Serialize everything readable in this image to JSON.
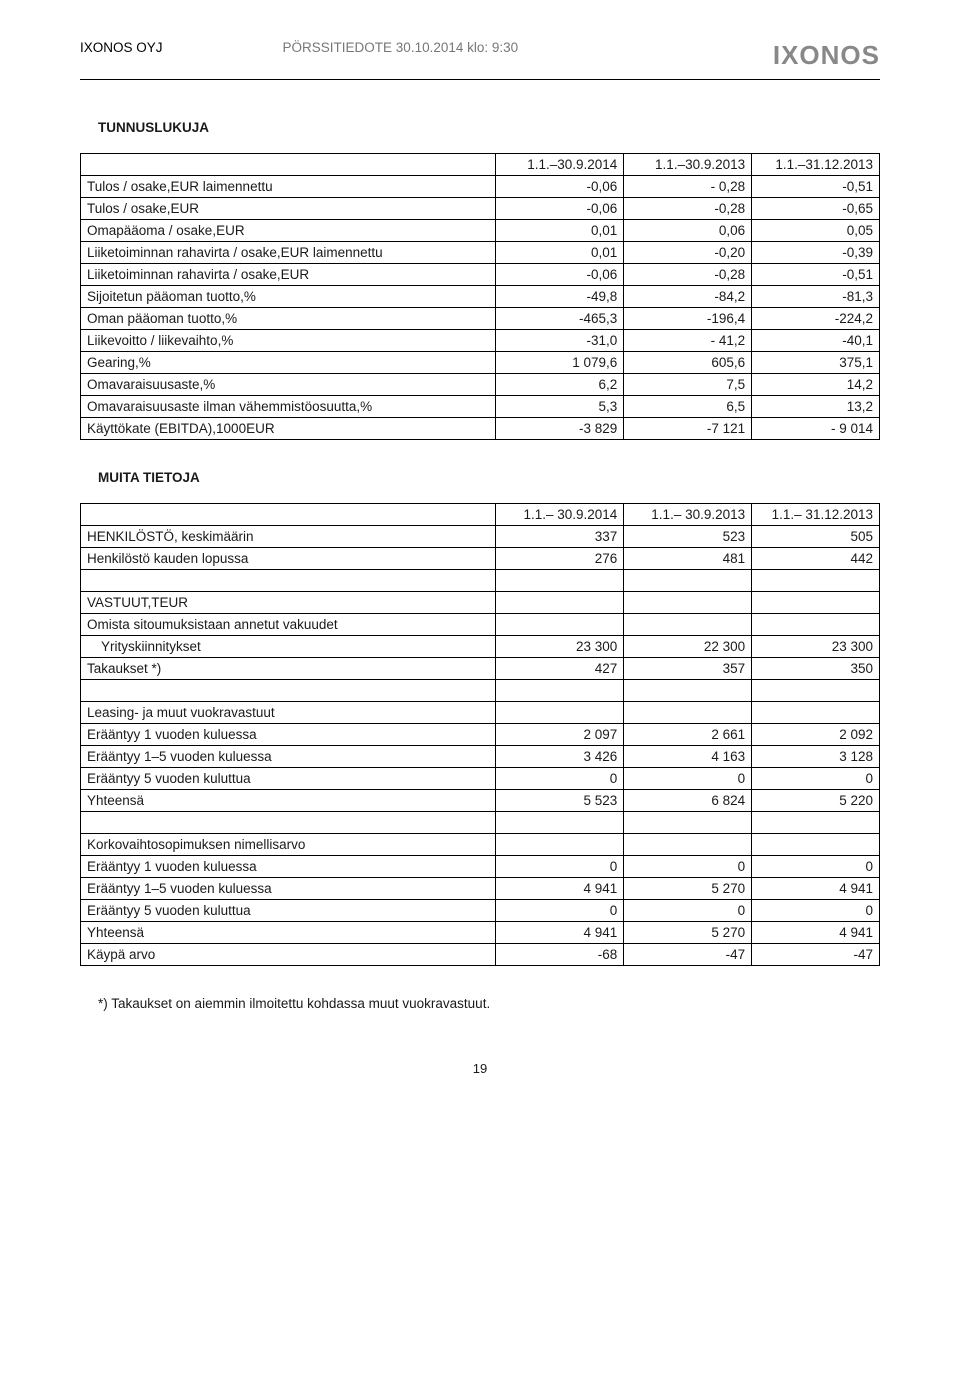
{
  "header": {
    "company": "IXONOS OYJ",
    "release": "PÖRSSITIEDOTE 30.10.2014 klo: 9:30",
    "logo": "IXONOS"
  },
  "section1": {
    "title": "TUNNUSLUKUJA",
    "columns": [
      "",
      "1.1.–30.9.2014",
      "1.1.–30.9.2013",
      "1.1.–31.12.2013"
    ],
    "rows": [
      [
        "Tulos / osake,EUR laimennettu",
        "-0,06",
        "- 0,28",
        "-0,51"
      ],
      [
        "Tulos / osake,EUR",
        "-0,06",
        "-0,28",
        "-0,65"
      ],
      [
        "Omapääoma / osake,EUR",
        "0,01",
        "0,06",
        "0,05"
      ],
      [
        "Liiketoiminnan rahavirta / osake,EUR laimennettu",
        "0,01",
        "-0,20",
        "-0,39"
      ],
      [
        "Liiketoiminnan rahavirta / osake,EUR",
        "-0,06",
        "-0,28",
        "-0,51"
      ],
      [
        "Sijoitetun pääoman tuotto,%",
        "-49,8",
        "-84,2",
        "-81,3"
      ],
      [
        "Oman pääoman tuotto,%",
        "-465,3",
        "-196,4",
        "-224,2"
      ],
      [
        "Liikevoitto /  liikevaihto,%",
        "-31,0",
        "- 41,2",
        "-40,1"
      ],
      [
        "Gearing,%",
        "1 079,6",
        "605,6",
        "375,1"
      ],
      [
        "Omavaraisuusaste,%",
        "6,2",
        "7,5",
        "14,2"
      ],
      [
        "Omavaraisuusaste ilman vähemmistöosuutta,%",
        "5,3",
        "6,5",
        "13,2"
      ],
      [
        "Käyttökate (EBITDA),1000EUR",
        "-3 829",
        "-7 121",
        "- 9 014"
      ]
    ]
  },
  "section2": {
    "title": "MUITA TIETOJA",
    "columns": [
      "",
      "1.1.– 30.9.2014",
      "1.1.– 30.9.2013",
      "1.1.– 31.12.2013"
    ],
    "rows": [
      {
        "cells": [
          "HENKILÖSTÖ, keskimäärin",
          "337",
          "523",
          "505"
        ],
        "indent": false
      },
      {
        "cells": [
          "Henkilöstö kauden lopussa",
          "276",
          "481",
          "442"
        ],
        "indent": false
      },
      {
        "cells": [
          "",
          "",
          "",
          ""
        ],
        "indent": false
      },
      {
        "cells": [
          "VASTUUT,TEUR",
          "",
          "",
          ""
        ],
        "indent": false
      },
      {
        "cells": [
          "Omista sitoumuksistaan annetut vakuudet",
          "",
          "",
          ""
        ],
        "indent": false
      },
      {
        "cells": [
          "Yrityskiinnitykset",
          "23 300",
          "22 300",
          "23 300"
        ],
        "indent": true
      },
      {
        "cells": [
          "Takaukset *)",
          "427",
          "357",
          "350"
        ],
        "indent": false
      },
      {
        "cells": [
          "",
          "",
          "",
          ""
        ],
        "indent": false
      },
      {
        "cells": [
          "Leasing- ja muut vuokravastuut",
          "",
          "",
          ""
        ],
        "indent": false
      },
      {
        "cells": [
          "Erääntyy 1 vuoden kuluessa",
          "2 097",
          "2 661",
          "2 092"
        ],
        "indent": false
      },
      {
        "cells": [
          "Erääntyy 1–5 vuoden kuluessa",
          "3 426",
          "4 163",
          "3 128"
        ],
        "indent": false
      },
      {
        "cells": [
          "Erääntyy 5 vuoden kuluttua",
          "0",
          "0",
          "0"
        ],
        "indent": false
      },
      {
        "cells": [
          "Yhteensä",
          "5 523",
          "6 824",
          "5 220"
        ],
        "indent": false
      },
      {
        "cells": [
          "",
          "",
          "",
          ""
        ],
        "indent": false
      },
      {
        "cells": [
          "Korkovaihtosopimuksen nimellisarvo",
          "",
          "",
          ""
        ],
        "indent": false
      },
      {
        "cells": [
          "Erääntyy 1 vuoden kuluessa",
          "0",
          "0",
          "0"
        ],
        "indent": false
      },
      {
        "cells": [
          "Erääntyy 1–5 vuoden kuluessa",
          "4 941",
          "5 270",
          "4 941"
        ],
        "indent": false
      },
      {
        "cells": [
          "Erääntyy 5 vuoden kuluttua",
          "0",
          "0",
          "0"
        ],
        "indent": false
      },
      {
        "cells": [
          "Yhteensä",
          "4 941",
          "5 270",
          "4 941"
        ],
        "indent": false
      },
      {
        "cells": [
          "Käypä arvo",
          "-68",
          "-47",
          "-47"
        ],
        "indent": false
      }
    ]
  },
  "footnote": "*) Takaukset on aiemmin ilmoitettu kohdassa muut vuokravastuut.",
  "page_number": "19"
}
